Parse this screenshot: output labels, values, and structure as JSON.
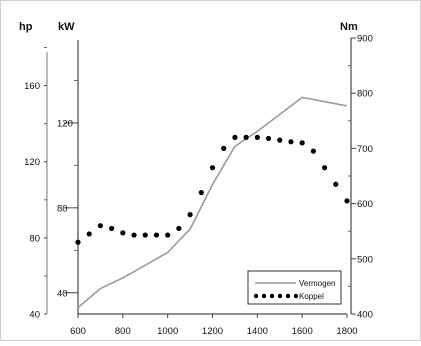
{
  "chart_data": {
    "type": "line",
    "x": [
      600,
      700,
      800,
      900,
      1000,
      1100,
      1200,
      1300,
      1400,
      1500,
      1600,
      1700,
      1800
    ],
    "x_ticks": [
      "600",
      "800",
      "1000",
      "1200",
      "1400",
      "1600",
      "1800"
    ],
    "xlim": [
      600,
      1800
    ],
    "axes": {
      "hp": {
        "unit": "hp",
        "ticks": [
          "40",
          "80",
          "120",
          "160"
        ],
        "ylim": [
          40,
          185
        ]
      },
      "kW": {
        "unit": "kW",
        "ticks": [
          "40",
          "80",
          "120"
        ],
        "ylim": [
          30,
          160
        ]
      },
      "Nm": {
        "unit": "Nm",
        "ticks": [
          "400",
          "500",
          "600",
          "700",
          "800",
          "900"
        ],
        "ylim": [
          400,
          900
        ]
      }
    },
    "series": [
      {
        "name": "Vermogen",
        "axis": "kW",
        "style": "solid",
        "color": "#9a9a9a",
        "x": [
          600,
          700,
          800,
          900,
          1000,
          1100,
          1200,
          1300,
          1400,
          1500,
          1600,
          1700,
          1800
        ],
        "values": [
          33,
          42,
          47,
          53,
          59,
          70,
          91,
          109,
          116,
          124,
          132,
          130,
          128
        ]
      },
      {
        "name": "Koppel",
        "axis": "Nm",
        "style": "dotted",
        "color": "#000000",
        "x": [
          600,
          650,
          700,
          750,
          800,
          850,
          900,
          950,
          1000,
          1050,
          1100,
          1150,
          1200,
          1250,
          1300,
          1350,
          1400,
          1450,
          1500,
          1550,
          1600,
          1650,
          1700,
          1750,
          1800
        ],
        "values": [
          530,
          545,
          560,
          555,
          547,
          543,
          543,
          543,
          543,
          555,
          580,
          620,
          665,
          700,
          720,
          720,
          720,
          718,
          715,
          712,
          710,
          695,
          665,
          635,
          605
        ]
      }
    ],
    "legend_position": "bottom-right"
  }
}
